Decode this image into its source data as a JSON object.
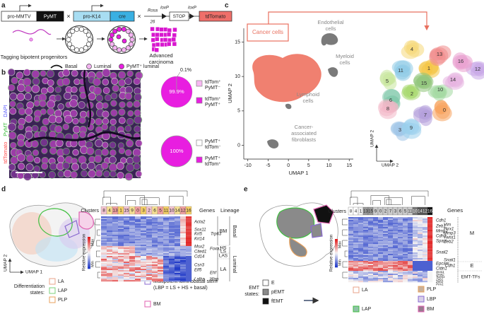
{
  "panel_a": {
    "letter": "a",
    "pro_mmtv": "pro-MMTV",
    "pymt": "PyMT",
    "times": "×",
    "pro_k14": "pro-K14",
    "cre": "cre",
    "rosa": [
      "Rosa",
      "26"
    ],
    "loxp": "loxP",
    "stop": "STOP",
    "tdtomato": "tdTomato",
    "tagging": "Tagging bipotent progenitors",
    "carcinoma": [
      "Advanced",
      "carcinoma"
    ],
    "legend": [
      "Basal",
      "Luminal",
      "PyMT⁺ luminal"
    ]
  },
  "panel_b": {
    "letter": "b",
    "stains": [
      "tdTomato",
      "PyMT",
      "DAPI"
    ],
    "pies": [
      {
        "values": [
          99.9,
          0.1
        ],
        "value_labels": [
          "99.9%",
          "0.1%"
        ],
        "colors": [
          "#e81ee0",
          "#f7b8f2"
        ],
        "legend": [
          [
            "tdTom⁺",
            "PyMT⁻"
          ],
          [
            "tdTom⁺",
            "PyMT⁺"
          ]
        ],
        "legend_colors": [
          "#f7b8f2",
          "#e81ee0"
        ]
      },
      {
        "values": [
          100
        ],
        "value_labels": [
          "100%"
        ],
        "colors": [
          "#e81ee0"
        ],
        "legend": [
          [
            "PyMT⁺",
            "tdTom⁻"
          ],
          [
            "PyMT⁺",
            "tdTom⁺"
          ]
        ],
        "legend_colors": [
          "#ffffff",
          "#e81ee0"
        ]
      }
    ]
  },
  "panel_c": {
    "letter": "c",
    "xlabel": "UMAP 1",
    "ylabel": "UMAP 2",
    "xlim": [
      -11,
      16
    ],
    "ylim": [
      -2,
      17
    ],
    "xticks": [
      -10,
      -5,
      0,
      5,
      10,
      15
    ],
    "yticks": [
      0,
      5,
      10,
      15
    ],
    "cancer": "Cancer cells",
    "endothelial": [
      "Endothelial",
      "cells"
    ],
    "myeloid": [
      "Myeloid",
      "cells"
    ],
    "lymphoid": [
      "Lymphoid",
      "cells"
    ],
    "caf": [
      "Cancer-",
      "associated",
      "fibroblasts"
    ],
    "clusters": [
      "0",
      "1",
      "2",
      "3",
      "4",
      "5",
      "6",
      "7",
      "8",
      "9",
      "10",
      "11",
      "12",
      "13",
      "14",
      "15",
      "16"
    ]
  },
  "panel_d": {
    "letter": "d",
    "clusters_label": "Clusters",
    "clusters": [
      "8",
      "4",
      "13",
      "1",
      "15",
      "9",
      "0",
      "3",
      "2",
      "6",
      "5",
      "11",
      "10",
      "14",
      "12",
      "16"
    ],
    "genes_label": "Genes",
    "lineage_label": "Lineage",
    "genes": [
      "Acta2",
      "Sox11",
      "Krt5",
      "Trp63",
      "Krt14",
      "Msx2",
      "Foxa1",
      "Cited1",
      "Cd14",
      "Csn3",
      "Elf5",
      "Ehf",
      "Lalba",
      "Wap"
    ],
    "lineage": [
      "BM",
      "Basal",
      "HS",
      "LS",
      "LAS",
      "Luminal",
      "LA"
    ],
    "rel_expr": "Relative expression",
    "min": "Min",
    "max": "Max",
    "umap1": "UMAP 1",
    "umap2": "UMAP 2",
    "states_label": [
      "Differentiation",
      "states:"
    ],
    "states": [
      "LA",
      "LAP",
      "PLP"
    ],
    "lbp": [
      "Multipotent luminobasal stem",
      "(LBP = LS + HS + basal)"
    ],
    "bm": "BM"
  },
  "panel_e": {
    "letter": "e",
    "clusters_label": "Clusters",
    "clusters": [
      "8",
      "4",
      "1",
      "13",
      "15",
      "9",
      "0",
      "2",
      "7",
      "3",
      "6",
      "5",
      "11",
      "10",
      "14",
      "12",
      "16"
    ],
    "genes_label": "Genes",
    "genes": [
      "Cdh1",
      "Vim",
      "Zeb1",
      "Prrx1",
      "Mmp2",
      "Mmp3",
      "Cdh2",
      "Twist1",
      "Sparc",
      "Zeb2",
      "Snail2",
      "Snail1",
      "Epcam",
      "Cdh1",
      "Cldn1",
      "Snai1",
      "Snai2",
      "Twist1",
      "Zeb1",
      "Zeb2",
      "Prrx1"
    ],
    "categories": [
      "M",
      "E",
      "EMT-TFs"
    ],
    "rel_expr": "Relative expression",
    "min": "Min",
    "max": "Max",
    "emt_label": [
      "EMT",
      "states:"
    ],
    "emt_states": [
      "E",
      "pEMT",
      "fEMT"
    ],
    "states": [
      "LA",
      "LAP",
      "PLP",
      "LBP",
      "BM"
    ]
  }
}
